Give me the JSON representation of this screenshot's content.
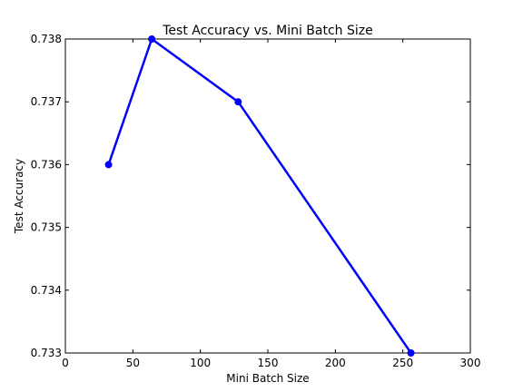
{
  "chart_data": {
    "type": "line",
    "title": "Test Accuracy vs. Mini Batch Size",
    "xlabel": "Mini Batch Size",
    "ylabel": "Test Accuracy",
    "xlim": [
      0,
      300
    ],
    "ylim": [
      0.733,
      0.738
    ],
    "xticks": [
      0,
      50,
      100,
      150,
      200,
      250,
      300
    ],
    "yticks": [
      0.733,
      0.734,
      0.735,
      0.736,
      0.737,
      0.738
    ],
    "ytick_labels": [
      "0.733",
      "0.734",
      "0.735",
      "0.736",
      "0.737",
      "0.738"
    ],
    "grid": false,
    "series": [
      {
        "x": [
          32,
          64,
          128,
          256
        ],
        "y": [
          0.736,
          0.738,
          0.737,
          0.733
        ],
        "color": "#0000ff",
        "marker": "circle"
      }
    ]
  }
}
